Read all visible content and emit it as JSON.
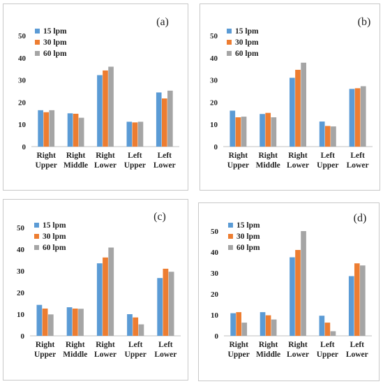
{
  "colors": {
    "15 lpm": "#5b9bd5",
    "30 lpm": "#ed7d31",
    "60 lpm": "#a5a5a5",
    "axis": "#bfbfbf",
    "text": "#222222"
  },
  "chart_data": [
    {
      "type": "bar",
      "label": "(a)",
      "categories": [
        [
          "Right",
          "Upper"
        ],
        [
          "Right",
          "Middle"
        ],
        [
          "Right",
          "Lower"
        ],
        [
          "Left",
          "Upper"
        ],
        [
          "Left",
          "Lower"
        ]
      ],
      "yticks": [
        0,
        10,
        20,
        30,
        40,
        50
      ],
      "ylim": [
        0,
        50
      ],
      "legend": "top-left",
      "series": [
        {
          "name": "15 lpm",
          "values": [
            16.4,
            15.0,
            32.2,
            11.2,
            24.4
          ]
        },
        {
          "name": "30 lpm",
          "values": [
            15.5,
            14.8,
            34.3,
            10.9,
            21.7
          ]
        },
        {
          "name": "60 lpm",
          "values": [
            16.4,
            13.0,
            36.0,
            11.2,
            25.2
          ]
        }
      ]
    },
    {
      "type": "bar",
      "label": "(b)",
      "categories": [
        [
          "Right",
          "Upper"
        ],
        [
          "Right",
          "Middle"
        ],
        [
          "Right",
          "Lower"
        ],
        [
          "Left",
          "Upper"
        ],
        [
          "Left",
          "Lower"
        ]
      ],
      "yticks": [
        0,
        10,
        20,
        30,
        40,
        50
      ],
      "ylim": [
        0,
        50
      ],
      "legend": "top-left",
      "series": [
        {
          "name": "15 lpm",
          "values": [
            16.2,
            14.7,
            31.0,
            11.3,
            26.0
          ]
        },
        {
          "name": "30 lpm",
          "values": [
            13.2,
            15.2,
            34.6,
            9.3,
            26.3
          ]
        },
        {
          "name": "60 lpm",
          "values": [
            13.5,
            13.2,
            37.8,
            9.1,
            27.2
          ]
        }
      ]
    },
    {
      "type": "bar",
      "label": "(c)",
      "categories": [
        [
          "Right",
          "Upper"
        ],
        [
          "Right",
          "Middle"
        ],
        [
          "Right",
          "Lower"
        ],
        [
          "Left",
          "Upper"
        ],
        [
          "Left",
          "Lower"
        ]
      ],
      "yticks": [
        0,
        10,
        20,
        30,
        40,
        50
      ],
      "ylim": [
        0,
        50
      ],
      "legend": "top-left",
      "series": [
        {
          "name": "15 lpm",
          "values": [
            14.3,
            13.2,
            33.5,
            10.0,
            26.7
          ]
        },
        {
          "name": "30 lpm",
          "values": [
            12.6,
            12.6,
            36.2,
            8.5,
            31.0
          ]
        },
        {
          "name": "60 lpm",
          "values": [
            9.9,
            12.5,
            40.8,
            5.3,
            29.6
          ]
        }
      ]
    },
    {
      "type": "bar",
      "label": "(d)",
      "categories": [
        [
          "Right",
          "Upper"
        ],
        [
          "Right",
          "Middle"
        ],
        [
          "Right",
          "Lower"
        ],
        [
          "Left",
          "Upper"
        ],
        [
          "Left",
          "Lower"
        ]
      ],
      "yticks": [
        0,
        10,
        20,
        30,
        40,
        50
      ],
      "ylim": [
        0,
        50
      ],
      "legend": "top-left",
      "series": [
        {
          "name": "15 lpm",
          "values": [
            10.8,
            11.3,
            37.5,
            9.6,
            28.5
          ]
        },
        {
          "name": "30 lpm",
          "values": [
            11.3,
            9.8,
            41.0,
            6.3,
            34.6
          ]
        },
        {
          "name": "60 lpm",
          "values": [
            6.3,
            7.8,
            50.0,
            2.2,
            33.6
          ]
        }
      ]
    }
  ]
}
